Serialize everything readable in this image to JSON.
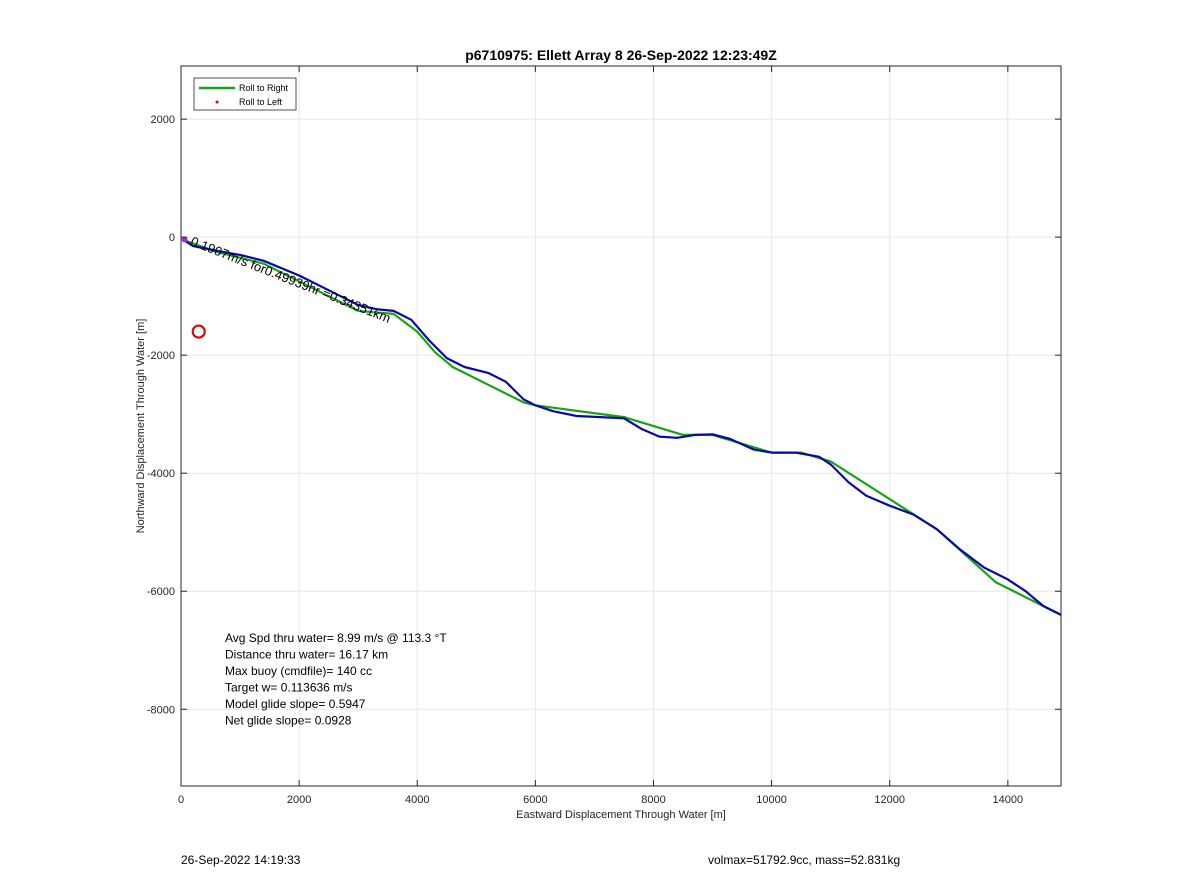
{
  "chart_data": {
    "type": "line",
    "title": "p6710975: Ellett Array 8 26-Sep-2022 12:23:49Z",
    "xlabel": "Eastward Displacement Through Water [m]",
    "ylabel": "Northward Displacement Through Water [m]",
    "xlim": [
      0,
      14900
    ],
    "ylim": [
      -9300,
      2900
    ],
    "xticks": [
      0,
      2000,
      4000,
      6000,
      8000,
      10000,
      12000,
      14000
    ],
    "yticks": [
      2000,
      0,
      -2000,
      -4000,
      -6000,
      -8000
    ],
    "grid": true,
    "legend_position": "top-left",
    "legend": [
      {
        "label": "Roll to Right",
        "color": "#1aa31a",
        "style": "line"
      },
      {
        "label": "Roll to Left",
        "color": "#e00000",
        "style": "dot"
      }
    ],
    "series": [
      {
        "color": "#1aa31a",
        "x": [
          50,
          600,
          1400,
          2200,
          3000,
          3600,
          4000,
          4300,
          4600,
          5200,
          5800,
          6000,
          7500,
          8500,
          9000,
          10000,
          10500,
          11000,
          12800,
          13800,
          14900
        ],
        "y": [
          -50,
          -250,
          -450,
          -850,
          -1250,
          -1300,
          -1600,
          -1950,
          -2200,
          -2500,
          -2800,
          -2850,
          -3050,
          -3350,
          -3350,
          -3650,
          -3650,
          -3800,
          -4950,
          -5850,
          -6400
        ]
      },
      {
        "color": "#0a0aa0",
        "x": [
          50,
          200,
          600,
          1000,
          1400,
          2000,
          2600,
          3000,
          3300,
          3600,
          3900,
          4200,
          4500,
          4800,
          5200,
          5500,
          5800,
          6000,
          6300,
          6700,
          7100,
          7500,
          7800,
          8100,
          8400,
          8700,
          9000,
          9300,
          9700,
          10000,
          10400,
          10800,
          11000,
          11300,
          11600,
          12000,
          12400,
          12800,
          13200,
          13600,
          14000,
          14300,
          14600,
          14900
        ],
        "y": [
          -50,
          -150,
          -230,
          -300,
          -400,
          -650,
          -950,
          -1150,
          -1220,
          -1250,
          -1400,
          -1750,
          -2050,
          -2200,
          -2300,
          -2450,
          -2750,
          -2850,
          -2950,
          -3030,
          -3050,
          -3070,
          -3250,
          -3380,
          -3400,
          -3350,
          -3340,
          -3420,
          -3600,
          -3650,
          -3650,
          -3720,
          -3850,
          -4150,
          -4380,
          -4550,
          -4700,
          -4950,
          -5300,
          -5600,
          -5800,
          -6000,
          -6250,
          -6400
        ]
      }
    ],
    "annotations": {
      "segment_label": "0.1907m/s for0.49939hr =0.34351km",
      "marker_circle": {
        "x": 300,
        "y": -1600,
        "color": "#cc1111"
      }
    },
    "stats": [
      "Avg Spd thru water=  8.99 m/s @ 113.3 °T",
      "Distance thru water= 16.17 km",
      "Max buoy (cmdfile)= 140 cc",
      "Target w= 0.113636 m/s",
      "Model glide slope= 0.5947",
      "Net glide slope= 0.0928"
    ]
  },
  "footer": {
    "timestamp": "26-Sep-2022 14:19:33",
    "info": "volmax=51792.9cc, mass=52.831kg"
  }
}
